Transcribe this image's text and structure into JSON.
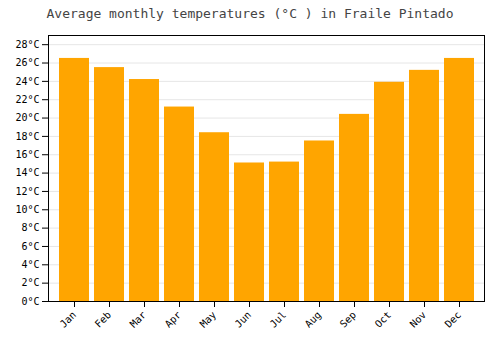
{
  "chart_data": {
    "type": "bar",
    "title": "Average monthly temperatures (°C ) in Fraile Pintado",
    "categories": [
      "Jan",
      "Feb",
      "Mar",
      "Apr",
      "May",
      "Jun",
      "Jul",
      "Aug",
      "Sep",
      "Oct",
      "Nov",
      "Dec"
    ],
    "values": [
      26.5,
      25.5,
      24.2,
      21.2,
      18.4,
      15.1,
      15.2,
      17.5,
      20.4,
      23.9,
      25.2,
      26.5
    ],
    "color": "#FFA500",
    "ylim": [
      0,
      29
    ],
    "yticks": [
      {
        "value": 0,
        "label": "0°C"
      },
      {
        "value": 2,
        "label": "2°C"
      },
      {
        "value": 4,
        "label": "4°C"
      },
      {
        "value": 6,
        "label": "6°C"
      },
      {
        "value": 8,
        "label": "8°C"
      },
      {
        "value": 10,
        "label": "10°C"
      },
      {
        "value": 12,
        "label": "12°C"
      },
      {
        "value": 14,
        "label": "14°C"
      },
      {
        "value": 16,
        "label": "16°C"
      },
      {
        "value": 18,
        "label": "18°C"
      },
      {
        "value": 20,
        "label": "20°C"
      },
      {
        "value": 22,
        "label": "22°C"
      },
      {
        "value": 24,
        "label": "24°C"
      },
      {
        "value": 26,
        "label": "26°C"
      },
      {
        "value": 28,
        "label": "28°C"
      }
    ],
    "grid": true
  }
}
